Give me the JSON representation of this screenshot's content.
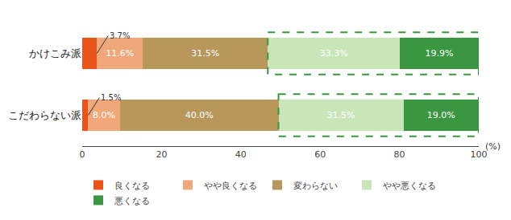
{
  "chart_data": {
    "type": "bar",
    "orientation": "horizontal",
    "stacked": true,
    "categories": [
      "かけこみ派",
      "こだわらない派"
    ],
    "series": [
      {
        "name": "良くなる",
        "color": "#e8541a",
        "values": [
          3.7,
          1.5
        ],
        "value_labels": [
          "3.7%",
          "1.5%"
        ]
      },
      {
        "name": "やや良くなる",
        "color": "#f0a87a",
        "values": [
          11.6,
          8.0
        ],
        "value_labels": [
          "11.6%",
          "8.0%"
        ]
      },
      {
        "name": "変わらない",
        "color": "#b8975a",
        "values": [
          31.5,
          40.0
        ],
        "value_labels": [
          "31.5%",
          "40.0%"
        ]
      },
      {
        "name": "やや悪くなる",
        "color": "#c8e6b8",
        "values": [
          33.3,
          31.5
        ],
        "value_labels": [
          "33.3%",
          "31.5%"
        ]
      },
      {
        "name": "悪くなる",
        "color": "#3a9640",
        "values": [
          19.9,
          19.0
        ],
        "value_labels": [
          "19.9%",
          "19.0%"
        ]
      }
    ],
    "xlim": [
      0,
      100
    ],
    "xticks": [
      0,
      20,
      40,
      60,
      80,
      100
    ],
    "xlabel": "(%)",
    "data_labels": true,
    "grid": false,
    "legend": "bottom"
  }
}
